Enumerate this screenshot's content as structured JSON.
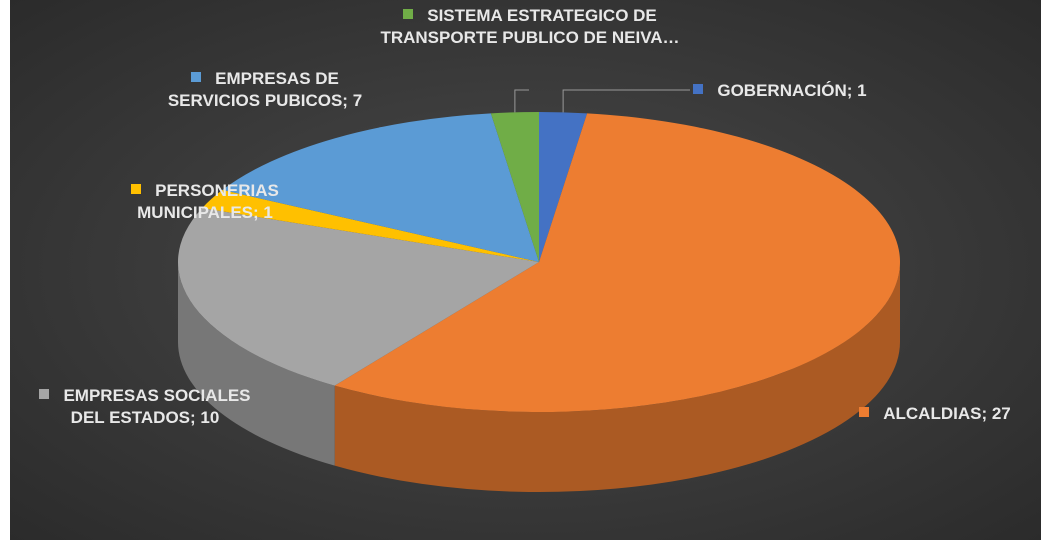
{
  "chart_data": {
    "type": "pie3d",
    "categories": [
      "GOBERNACIÓN",
      "ALCALDIAS",
      "EMPRESAS SOCIALES DEL ESTADOS",
      "PERSONERIAS MUNICIPALES",
      "EMPRESAS DE SERVICIOS PUBICOS",
      "SISTEMA ESTRATEGICO DE TRANSPORTE PUBLICO DE NEIVA…"
    ],
    "values": [
      1,
      27,
      10,
      1,
      7,
      1
    ],
    "value_labels": [
      "1",
      "27",
      "10",
      "1",
      "7",
      null
    ],
    "label_separator": "; ",
    "colors": [
      "#4472c4",
      "#ed7d31",
      "#a5a5a5",
      "#ffc000",
      "#5b9bd5",
      "#70ad47"
    ]
  }
}
